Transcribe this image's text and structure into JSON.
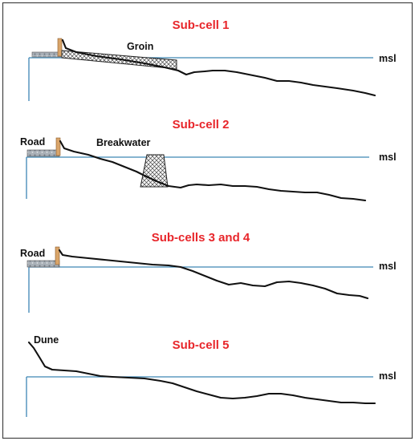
{
  "panels": [
    {
      "title": "Sub-cell 1",
      "msl_label": "msl",
      "labels": {
        "groin": "Groin"
      }
    },
    {
      "title": "Sub-cell 2",
      "msl_label": "msl",
      "labels": {
        "road": "Road",
        "breakwater": "Breakwater"
      }
    },
    {
      "title": "Sub-cells 3 and 4",
      "msl_label": "msl",
      "labels": {
        "road": "Road"
      }
    },
    {
      "title": "Sub-cell 5",
      "msl_label": "msl",
      "labels": {
        "dune": "Dune"
      }
    }
  ],
  "colors": {
    "title": "#e8262b",
    "msl_line": "#3d86b5",
    "profile": "#111111",
    "frame": "#444444",
    "road": "#9aa3ab",
    "seawall": "#d9a56a"
  }
}
